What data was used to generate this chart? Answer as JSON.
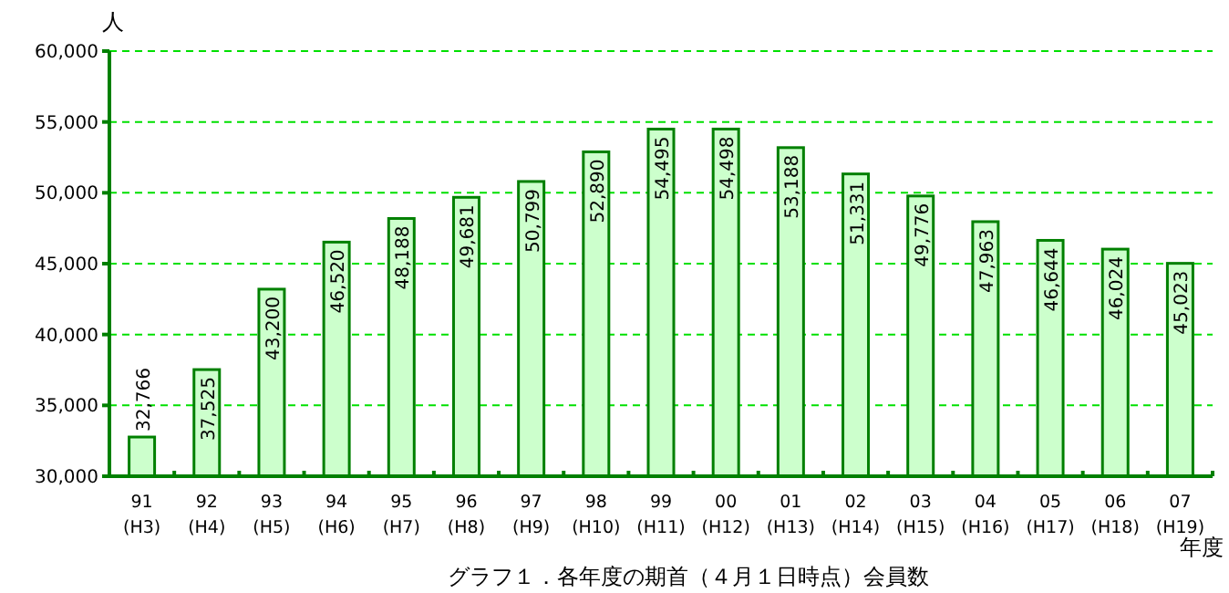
{
  "chart_data": {
    "type": "bar",
    "title": "グラフ１．各年度の期首（４月１日時点）会員数",
    "xlabel": "年度",
    "ylabel": "人",
    "categories": [
      "91\n(H3)",
      "92\n(H4)",
      "93\n(H5)",
      "94\n(H6)",
      "95\n(H7)",
      "96\n(H8)",
      "97\n(H9)",
      "98\n(H10)",
      "99\n(H11)",
      "00\n(H12)",
      "01\n(H13)",
      "02\n(H14)",
      "03\n(H15)",
      "04\n(H16)",
      "05\n(H17)",
      "06\n(H18)",
      "07\n(H19)"
    ],
    "values": [
      32766,
      37525,
      43200,
      46520,
      48188,
      49681,
      50799,
      52890,
      54495,
      54498,
      53188,
      51331,
      49776,
      47963,
      46644,
      46024,
      45023
    ],
    "color": "#ccffcc",
    "ylim": [
      30000,
      60000
    ],
    "yticks": [
      {
        "value": 30000,
        "label": "30,000"
      },
      {
        "value": 35000,
        "label": "35,000"
      },
      {
        "value": 40000,
        "label": "40,000"
      },
      {
        "value": 45000,
        "label": "45,000"
      },
      {
        "value": 50000,
        "label": "50,000"
      },
      {
        "value": 55000,
        "label": "55,000"
      },
      {
        "value": 60000,
        "label": "60,000"
      }
    ],
    "value_labels": [
      "32,766",
      "37,525",
      "43,200",
      "46,520",
      "48,188",
      "49,681",
      "50,799",
      "52,890",
      "54,495",
      "54,498",
      "53,188",
      "51,331",
      "49,776",
      "47,963",
      "46,644",
      "46,024",
      "45,023"
    ],
    "grid": "y"
  }
}
